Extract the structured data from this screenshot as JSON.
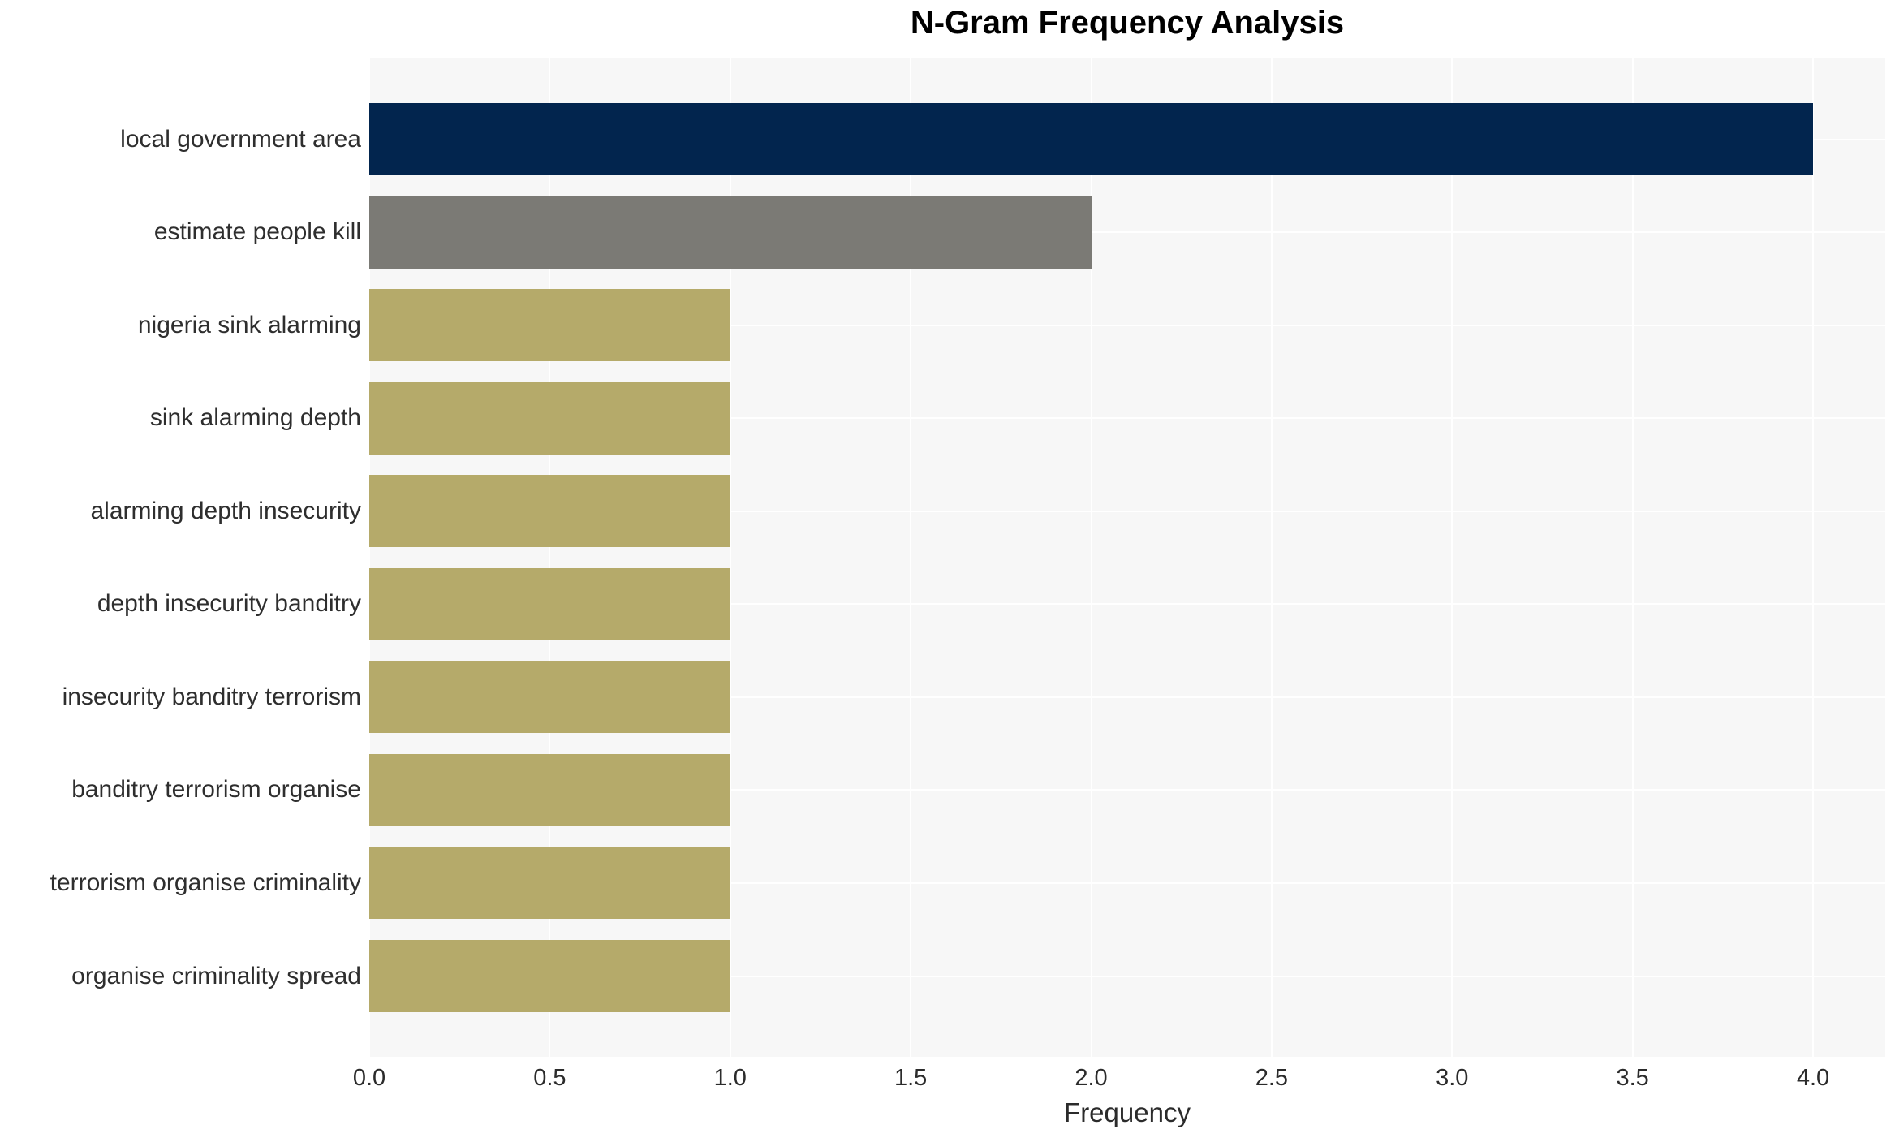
{
  "chart_data": {
    "type": "bar",
    "orientation": "horizontal",
    "title": "N-Gram Frequency Analysis",
    "xlabel": "Frequency",
    "ylabel": "",
    "categories": [
      "local government area",
      "estimate people kill",
      "nigeria sink alarming",
      "sink alarming depth",
      "alarming depth insecurity",
      "depth insecurity banditry",
      "insecurity banditry terrorism",
      "banditry terrorism organise",
      "terrorism organise criminality",
      "organise criminality spread"
    ],
    "values": [
      4,
      2,
      1,
      1,
      1,
      1,
      1,
      1,
      1,
      1
    ],
    "bar_colors": [
      "#02254e",
      "#7b7a75",
      "#b5aa6a",
      "#b5aa6a",
      "#b5aa6a",
      "#b5aa6a",
      "#b5aa6a",
      "#b5aa6a",
      "#b5aa6a",
      "#b5aa6a"
    ],
    "xlim": [
      0,
      4.2
    ],
    "xtick_values": [
      0,
      0.5,
      1,
      1.5,
      2,
      2.5,
      3,
      3.5,
      4
    ],
    "xtick_labels": [
      "0.0",
      "0.5",
      "1.0",
      "1.5",
      "2.0",
      "2.5",
      "3.0",
      "3.5",
      "4.0"
    ],
    "grid": true,
    "legend": "none",
    "colors": {
      "plot_background": "#f7f7f7",
      "grid_line": "#ffffff",
      "axis_text": "#2b2b2b",
      "category_text": "#2e2e2e",
      "title_text": "#000000"
    }
  }
}
